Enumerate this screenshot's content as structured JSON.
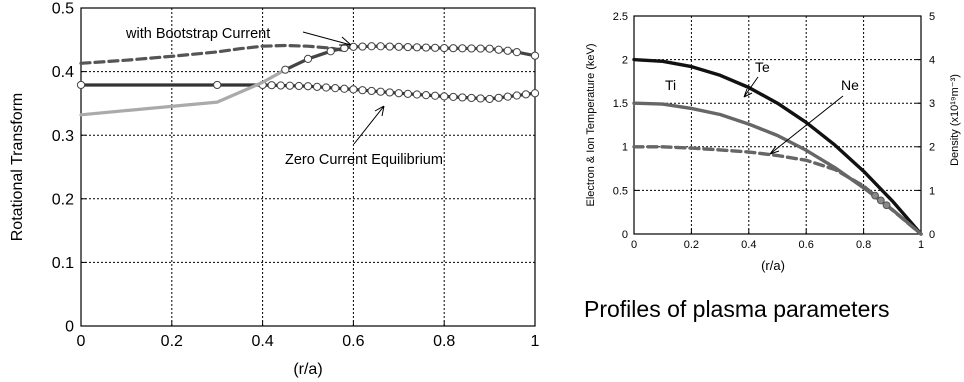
{
  "caption": "Profiles of plasma parameters",
  "chart_data": [
    {
      "type": "line",
      "title": "",
      "xlabel": "(r/a)",
      "ylabel": "Rotational Transform",
      "xlim": [
        0,
        1
      ],
      "ylim": [
        0,
        0.5
      ],
      "xticks": [
        "0",
        "0.2",
        "0.4",
        "0.6",
        "0.8",
        "1"
      ],
      "yticks": [
        "0",
        "0.1",
        "0.2",
        "0.3",
        "0.4",
        "0.5"
      ],
      "grid": true,
      "annotations": [
        {
          "text": "with Bootstrap Current"
        },
        {
          "text": "Zero Current Equilibrium"
        }
      ],
      "series": [
        {
          "color": "#555555",
          "style": "dashed",
          "x": [
            0,
            0.1,
            0.2,
            0.3,
            0.35,
            0.4,
            0.45,
            0.5,
            0.55,
            0.58
          ],
          "y": [
            0.413,
            0.418,
            0.424,
            0.431,
            0.436,
            0.44,
            0.441,
            0.44,
            0.437,
            0.433
          ]
        },
        {
          "color": "#333333",
          "style": "solid",
          "x": [
            0,
            0.3,
            0.4,
            0.5,
            0.6,
            0.7,
            0.8,
            0.9,
            1.0
          ],
          "y": [
            0.379,
            0.379,
            0.379,
            0.377,
            0.372,
            0.366,
            0.361,
            0.357,
            0.366
          ],
          "markers": [
            0,
            0.3,
            0.4,
            0.42,
            0.44,
            0.46,
            0.48,
            0.5,
            0.52,
            0.54,
            0.56,
            0.58,
            0.6,
            0.62,
            0.64,
            0.66,
            0.68,
            0.7,
            0.72,
            0.74,
            0.76,
            0.78,
            0.8,
            0.82,
            0.84,
            0.86,
            0.88,
            0.9,
            0.92,
            0.94,
            0.96,
            0.98,
            1.0
          ]
        },
        {
          "color": "#aaaaaa",
          "style": "solid",
          "x": [
            0,
            0.3,
            0.4,
            0.45,
            0.5,
            0.55
          ],
          "y": [
            0.332,
            0.352,
            0.383,
            0.403,
            0.42,
            0.432
          ]
        },
        {
          "color": "#444444",
          "style": "solid",
          "x": [
            0.45,
            0.5,
            0.55,
            0.58,
            0.6,
            0.65,
            0.7,
            0.8,
            0.9,
            0.95,
            1.0
          ],
          "y": [
            0.403,
            0.42,
            0.432,
            0.437,
            0.439,
            0.44,
            0.439,
            0.437,
            0.436,
            0.432,
            0.425
          ],
          "markers": [
            0.45,
            0.5,
            0.55,
            0.58,
            0.6,
            0.62,
            0.64,
            0.66,
            0.68,
            0.7,
            0.72,
            0.74,
            0.76,
            0.78,
            0.8,
            0.82,
            0.84,
            0.86,
            0.88,
            0.9,
            0.92,
            0.94,
            0.96,
            1.0
          ]
        }
      ]
    },
    {
      "type": "line",
      "title": "",
      "xlabel": "(r/a)",
      "ylabel": "Electron & Ion Temperature (keV)",
      "y2label": "Density (x10¹⁹m⁻³)",
      "xlim": [
        0,
        1
      ],
      "ylim": [
        0,
        2.5
      ],
      "y2lim": [
        0,
        5
      ],
      "xticks": [
        "0",
        "0.2",
        "0.4",
        "0.6",
        "0.8",
        "1"
      ],
      "yticks": [
        "0",
        "0.5",
        "1",
        "1.5",
        "2",
        "2.5"
      ],
      "y2ticks": [
        "0",
        "1",
        "2",
        "3",
        "4",
        "5"
      ],
      "grid": true,
      "labels": [
        {
          "text": "Te"
        },
        {
          "text": "Ti"
        },
        {
          "text": "Ne"
        }
      ],
      "series": [
        {
          "name": "Te",
          "axis": "left",
          "color": "#111111",
          "style": "solid",
          "x": [
            0,
            0.1,
            0.2,
            0.3,
            0.4,
            0.5,
            0.6,
            0.7,
            0.8,
            0.9,
            1.0
          ],
          "y": [
            2.0,
            1.98,
            1.92,
            1.82,
            1.68,
            1.5,
            1.28,
            1.02,
            0.72,
            0.38,
            0.0
          ]
        },
        {
          "name": "Ti",
          "axis": "left",
          "color": "#666666",
          "style": "solid",
          "x": [
            0,
            0.1,
            0.2,
            0.3,
            0.4,
            0.5,
            0.6,
            0.7,
            0.8,
            0.9,
            1.0
          ],
          "y": [
            1.5,
            1.49,
            1.44,
            1.37,
            1.26,
            1.13,
            0.96,
            0.76,
            0.53,
            0.28,
            0.0
          ]
        },
        {
          "name": "Ne",
          "axis": "right",
          "color": "#666666",
          "style": "dashed",
          "x": [
            0,
            0.1,
            0.2,
            0.3,
            0.4,
            0.5,
            0.6,
            0.7,
            0.8,
            0.9,
            1.0
          ],
          "y": [
            2.0,
            2.0,
            1.97,
            1.93,
            1.88,
            1.8,
            1.69,
            1.48,
            1.1,
            0.55,
            0.0
          ]
        }
      ]
    }
  ]
}
